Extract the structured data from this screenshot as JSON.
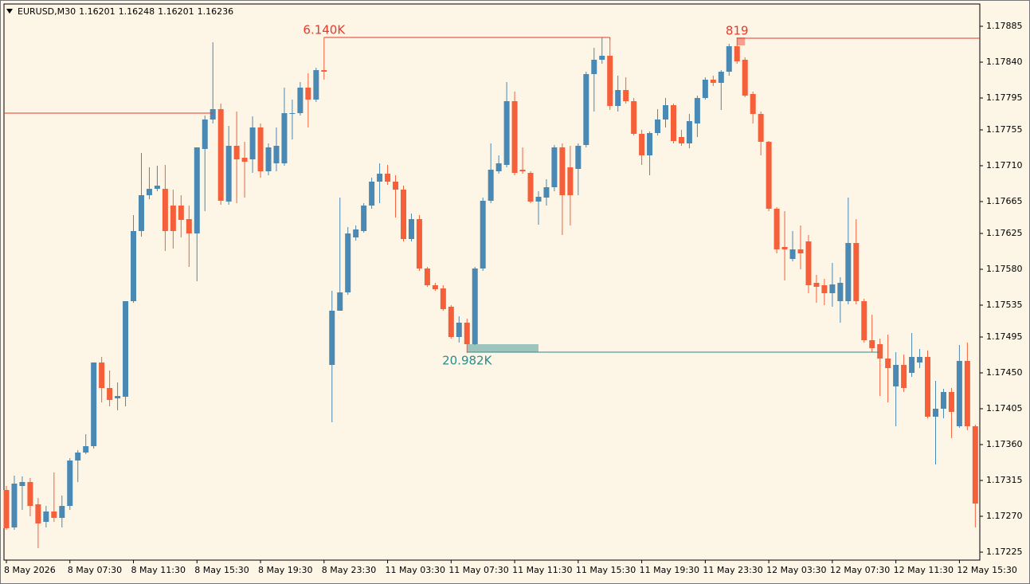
{
  "chart_data": {
    "type": "candlestick",
    "symbol": "EURUSD,M30",
    "header_ohlc": [
      1.16201,
      1.16248,
      1.16201,
      1.16236
    ],
    "up_color": "#4a89b4",
    "down_color": "#f5603a",
    "background": "#fdf5e6",
    "categories": [
      "8 May 2026",
      null,
      null,
      null,
      null,
      null,
      null,
      null,
      "8 May 07:30",
      null,
      null,
      null,
      null,
      null,
      null,
      null,
      "8 May 11:30",
      null,
      null,
      null,
      null,
      null,
      null,
      null,
      "8 May 15:30",
      null,
      null,
      null,
      null,
      null,
      null,
      null,
      "8 May 19:30",
      null,
      null,
      null,
      null,
      null,
      null,
      null,
      "8 May 23:30",
      null,
      null,
      null,
      null,
      null,
      null,
      null,
      "11 May 03:30",
      null,
      null,
      null,
      null,
      null,
      null,
      null,
      "11 May 07:30",
      null,
      null,
      null,
      null,
      null,
      null,
      null,
      "11 May 11:30",
      null,
      null,
      null,
      null,
      null,
      null,
      null,
      "11 May 15:30",
      null,
      null,
      null,
      null,
      null,
      null,
      null,
      "11 May 19:30",
      null,
      null,
      null,
      null,
      null,
      null,
      null,
      "11 May 23:30",
      null,
      null,
      null,
      null,
      null,
      null,
      null,
      "12 May 03:30",
      null,
      null,
      null,
      null,
      null,
      null,
      null,
      "12 May 07:30",
      null,
      null,
      null,
      null,
      null,
      null,
      null,
      "12 May 11:30",
      null,
      null,
      null,
      null,
      null,
      null,
      null,
      "12 May 15:30",
      null,
      null
    ],
    "open": [
      1.17303,
      1.17256,
      1.17308,
      1.17313,
      1.17285,
      1.17263,
      1.17276,
      1.17268,
      1.17283,
      1.1734,
      1.1735,
      1.17358,
      1.17463,
      1.17431,
      1.17418,
      1.1742,
      1.1754,
      1.17628,
      1.17673,
      1.17681,
      1.17681,
      1.1766,
      1.1766,
      1.17643,
      1.17625,
      1.17731,
      1.17768,
      1.17781,
      1.17665,
      1.17735,
      1.1772,
      1.17718,
      1.17758,
      1.17703,
      1.17713,
      1.17713,
      1.17775,
      1.17776,
      1.17808,
      1.17793,
      1.1783,
      1.1746,
      1.17528,
      1.17551,
      1.1762,
      1.17628,
      1.1766,
      1.1769,
      1.177,
      1.1769,
      1.1768,
      1.17618,
      1.17643,
      1.17581,
      1.1756,
      1.17556,
      1.17533,
      1.17495,
      1.17513,
      1.17486,
      1.17581,
      1.17666,
      1.17703,
      1.17711,
      1.17791,
      1.17705,
      1.17701,
      1.17665,
      1.1767,
      1.17683,
      1.17733,
      1.17708,
      1.17706,
      1.17736,
      1.17825,
      1.17843,
      1.17848,
      1.17785,
      1.17805,
      1.17791,
      1.1775,
      1.17723,
      1.17751,
      1.17768,
      1.17786,
      1.17746,
      1.17738,
      1.17763,
      1.17795,
      1.17818,
      1.17814,
      1.17828,
      1.1786,
      1.17843,
      1.178,
      1.17775,
      1.1774,
      1.17656,
      1.17608,
      1.17593,
      1.17605,
      1.17615,
      1.17563,
      1.1756,
      1.1755,
      1.1754,
      1.1754,
      1.17613,
      1.1754,
      1.17491,
      1.17486,
      1.17468,
      1.17433,
      1.1746,
      1.1745,
      1.17463,
      1.1747,
      1.17395,
      1.17405,
      1.17426,
      1.17383,
      1.17465,
      1.17383
    ],
    "high": [
      1.17308,
      1.17321,
      1.1732,
      1.17318,
      1.17293,
      1.17283,
      1.17325,
      1.17296,
      1.17343,
      1.17353,
      1.17373,
      1.17463,
      1.1747,
      1.17453,
      1.17438,
      1.1754,
      1.17648,
      1.17726,
      1.17708,
      1.1771,
      1.17711,
      1.1768,
      1.17673,
      1.1766,
      1.17733,
      1.17773,
      1.17865,
      1.17788,
      1.1776,
      1.17778,
      1.1774,
      1.17772,
      1.17763,
      1.17738,
      1.17758,
      1.17808,
      1.17793,
      1.17815,
      1.17826,
      1.17833,
      1.17871,
      1.17553,
      1.1767,
      1.17633,
      1.17635,
      1.17663,
      1.17695,
      1.17713,
      1.17711,
      1.17698,
      1.17685,
      1.1765,
      1.17648,
      1.17583,
      1.17563,
      1.1756,
      1.17535,
      1.17521,
      1.17518,
      1.17583,
      1.1767,
      1.17738,
      1.17723,
      1.17815,
      1.17803,
      1.17733,
      1.17703,
      1.17678,
      1.17693,
      1.17736,
      1.17738,
      1.17735,
      1.17738,
      1.17828,
      1.17858,
      1.17871,
      1.17868,
      1.17823,
      1.17821,
      1.17795,
      1.17755,
      1.17753,
      1.17781,
      1.17795,
      1.17788,
      1.17755,
      1.17775,
      1.17798,
      1.17821,
      1.17823,
      1.1783,
      1.17863,
      1.17871,
      1.17846,
      1.17803,
      1.17778,
      1.17741,
      1.17658,
      1.17653,
      1.17628,
      1.17635,
      1.17623,
      1.17573,
      1.17568,
      1.17588,
      1.1757,
      1.1767,
      1.17643,
      1.17543,
      1.17523,
      1.17493,
      1.17498,
      1.17476,
      1.17473,
      1.175,
      1.1748,
      1.17478,
      1.1744,
      1.1743,
      1.17431,
      1.17485,
      1.17488,
      1.17385
    ],
    "low": [
      1.17253,
      1.17253,
      1.17278,
      1.1727,
      1.1723,
      1.17256,
      1.17263,
      1.17256,
      1.17278,
      1.17313,
      1.17348,
      1.17355,
      1.17413,
      1.17408,
      1.17403,
      1.17408,
      1.17538,
      1.17621,
      1.17668,
      1.17678,
      1.17603,
      1.17606,
      1.1762,
      1.17583,
      1.17565,
      1.17653,
      1.17763,
      1.17661,
      1.17661,
      1.17663,
      1.1767,
      1.17701,
      1.17695,
      1.17698,
      1.17703,
      1.1771,
      1.17743,
      1.17773,
      1.17758,
      1.1779,
      1.17818,
      1.17388,
      1.17528,
      1.17548,
      1.17616,
      1.17626,
      1.17656,
      1.17663,
      1.17686,
      1.17645,
      1.17615,
      1.17615,
      1.17578,
      1.17558,
      1.17553,
      1.17528,
      1.17493,
      1.17488,
      1.17475,
      1.17485,
      1.17578,
      1.17663,
      1.177,
      1.17708,
      1.17698,
      1.177,
      1.17663,
      1.17636,
      1.1766,
      1.17678,
      1.17623,
      1.17635,
      1.17673,
      1.17733,
      1.17778,
      1.17838,
      1.1778,
      1.17778,
      1.17788,
      1.17748,
      1.17711,
      1.17698,
      1.17748,
      1.17758,
      1.17738,
      1.17735,
      1.17732,
      1.17746,
      1.17793,
      1.1781,
      1.1778,
      1.17823,
      1.17838,
      1.17796,
      1.17763,
      1.17723,
      1.17653,
      1.176,
      1.17566,
      1.1759,
      1.1758,
      1.1755,
      1.17538,
      1.17535,
      1.17533,
      1.17513,
      1.17536,
      1.17536,
      1.17488,
      1.17476,
      1.17421,
      1.17413,
      1.17383,
      1.17426,
      1.17445,
      1.17456,
      1.17393,
      1.17335,
      1.17393,
      1.17368,
      1.17381,
      1.17378,
      1.17256
    ],
    "close": [
      1.17255,
      1.17311,
      1.17313,
      1.17283,
      1.17261,
      1.17276,
      1.17268,
      1.17283,
      1.1734,
      1.1735,
      1.17358,
      1.17463,
      1.17431,
      1.17416,
      1.17421,
      1.1754,
      1.17628,
      1.17673,
      1.17681,
      1.17685,
      1.17628,
      1.17628,
      1.17642,
      1.17625,
      1.17733,
      1.17768,
      1.17781,
      1.17666,
      1.17735,
      1.17718,
      1.17715,
      1.17758,
      1.17703,
      1.17733,
      1.17735,
      1.17776,
      1.17776,
      1.17808,
      1.17793,
      1.1783,
      1.17828,
      1.17528,
      1.17551,
      1.17625,
      1.1763,
      1.1766,
      1.1769,
      1.177,
      1.1769,
      1.1768,
      1.17618,
      1.17643,
      1.17581,
      1.1756,
      1.17555,
      1.1753,
      1.17495,
      1.17513,
      1.17486,
      1.17581,
      1.17666,
      1.17705,
      1.17713,
      1.17791,
      1.17701,
      1.17703,
      1.17665,
      1.17671,
      1.17683,
      1.17733,
      1.17673,
      1.17673,
      1.17735,
      1.17825,
      1.17843,
      1.17848,
      1.17785,
      1.17805,
      1.17791,
      1.1775,
      1.17723,
      1.17751,
      1.17768,
      1.17786,
      1.17741,
      1.17738,
      1.17766,
      1.17795,
      1.17818,
      1.17814,
      1.17828,
      1.1786,
      1.17841,
      1.17798,
      1.17775,
      1.1774,
      1.17656,
      1.17605,
      1.17605,
      1.17605,
      1.176,
      1.1756,
      1.17558,
      1.1755,
      1.17561,
      1.17563,
      1.17613,
      1.1754,
      1.17491,
      1.17481,
      1.17468,
      1.17456,
      1.1746,
      1.17431,
      1.1747,
      1.1747,
      1.17395,
      1.17405,
      1.17426,
      1.17401,
      1.17465,
      1.17383,
      1.17286
    ],
    "ylim": [
      1.17215,
      1.17913
    ],
    "yticks": [
      1.17885,
      {
        "value": 1.1784,
        "label": "1.17840"
      },
      1.17795,
      1.17755,
      {
        "value": 1.1771,
        "label": "1.17710"
      },
      1.17665,
      1.17625,
      {
        "value": 1.1758,
        "label": "1.17580"
      },
      1.17535,
      1.17495,
      {
        "value": 1.1745,
        "label": "1.17450"
      },
      1.17405,
      {
        "value": 1.1736,
        "label": "1.17360"
      },
      1.17315,
      {
        "value": 1.1727,
        "label": "1.17270"
      },
      1.17225
    ],
    "levels": [
      {
        "label": "6.140K",
        "price": 1.17871,
        "from": 40,
        "to": 76,
        "color": "#e8392a",
        "label_side": "above"
      },
      {
        "price": 1.17776,
        "from": 0,
        "to": 26,
        "color": "#e8392a"
      },
      {
        "label": "819",
        "price": 1.1787,
        "from": 92,
        "extend": true,
        "zone": [
          1.17861,
          1.17871
        ],
        "zone_to": 93,
        "color": "#e8392a",
        "label_side": "above"
      },
      {
        "label": "20.982K",
        "price": 1.17476,
        "from": 58,
        "to": 110,
        "zone": [
          1.17476,
          1.17486
        ],
        "zone_to": 67,
        "color": "#2a8c8c",
        "label_side": "below"
      }
    ]
  }
}
